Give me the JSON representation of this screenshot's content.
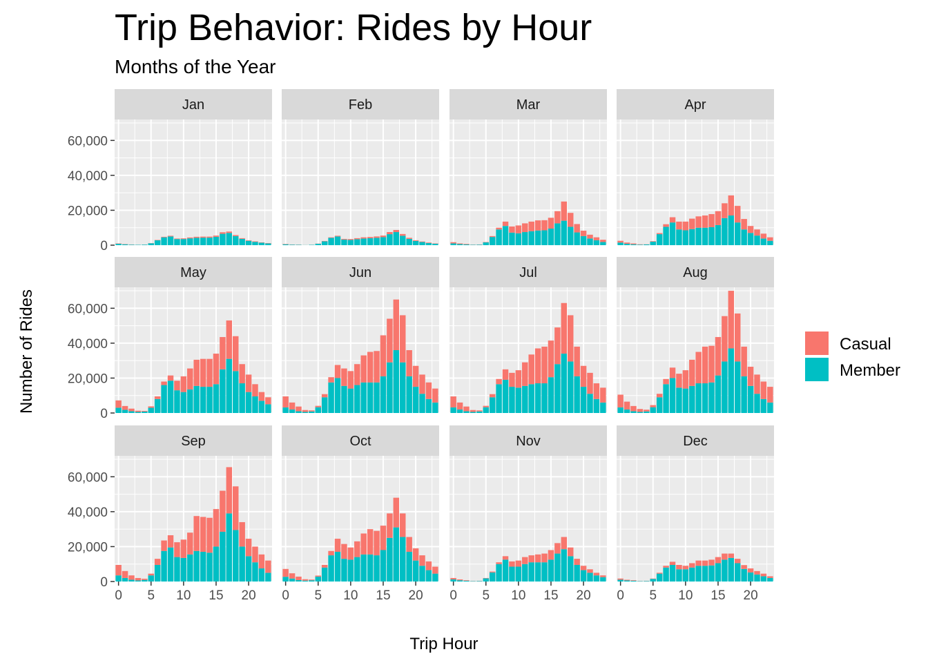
{
  "chart_data": {
    "type": "bar",
    "stacked": true,
    "title": "Trip Behavior: Rides by Hour",
    "subtitle": "Months of the Year",
    "xlabel": "Trip Hour",
    "ylabel": "Number of Rides",
    "xlim": [
      -0.6,
      23.6
    ],
    "ylim": [
      0,
      72000
    ],
    "x_ticks": [
      0,
      5,
      10,
      15,
      20
    ],
    "y_ticks": [
      0,
      20000,
      40000,
      60000
    ],
    "y_tick_labels": [
      "0",
      "20,000",
      "40,000",
      "60,000"
    ],
    "grid": true,
    "legend_position": "right",
    "legend": [
      {
        "name": "Casual",
        "color": "#F8766D"
      },
      {
        "name": "Member",
        "color": "#00BFC4"
      }
    ],
    "hours": [
      0,
      1,
      2,
      3,
      4,
      5,
      6,
      7,
      8,
      9,
      10,
      11,
      12,
      13,
      14,
      15,
      16,
      17,
      18,
      19,
      20,
      21,
      22,
      23
    ],
    "panels": [
      {
        "label": "Jan",
        "member": [
          800,
          500,
          300,
          200,
          300,
          1100,
          2800,
          4500,
          5000,
          3500,
          3500,
          3900,
          4200,
          4300,
          4300,
          4800,
          6500,
          7000,
          5200,
          3600,
          2500,
          1900,
          1400,
          1000
        ],
        "casual": [
          200,
          150,
          100,
          50,
          50,
          100,
          200,
          300,
          400,
          300,
          400,
          500,
          600,
          600,
          600,
          700,
          900,
          800,
          600,
          400,
          300,
          300,
          200,
          200
        ]
      },
      {
        "label": "Feb",
        "member": [
          500,
          300,
          200,
          100,
          200,
          800,
          2200,
          4200,
          5000,
          3200,
          3000,
          3400,
          3800,
          4000,
          4200,
          4600,
          6300,
          7500,
          5400,
          3600,
          2400,
          1800,
          1200,
          800
        ],
        "casual": [
          200,
          100,
          100,
          50,
          50,
          100,
          200,
          300,
          400,
          400,
          500,
          600,
          700,
          700,
          800,
          900,
          1200,
          1200,
          1000,
          600,
          400,
          300,
          300,
          200
        ]
      },
      {
        "label": "Mar",
        "member": [
          1000,
          600,
          400,
          200,
          300,
          1600,
          4700,
          9000,
          11000,
          7200,
          6800,
          7500,
          8000,
          8400,
          8500,
          9500,
          12500,
          14000,
          10500,
          7300,
          5200,
          3800,
          2800,
          1800
        ],
        "casual": [
          700,
          400,
          300,
          100,
          100,
          200,
          500,
          1000,
          2500,
          3500,
          4500,
          5000,
          5500,
          5800,
          5800,
          6200,
          7000,
          11000,
          8000,
          4800,
          3100,
          2200,
          1700,
          1300
        ]
      },
      {
        "label": "Apr",
        "member": [
          1500,
          800,
          500,
          300,
          400,
          2000,
          6300,
          10500,
          13000,
          9000,
          8500,
          9200,
          10000,
          10000,
          10300,
          11500,
          15500,
          17000,
          13000,
          9000,
          7000,
          5500,
          3800,
          2500
        ],
        "casual": [
          1000,
          700,
          500,
          200,
          100,
          300,
          600,
          1500,
          3000,
          4500,
          5000,
          6000,
          6500,
          7000,
          7500,
          8000,
          8500,
          11500,
          9500,
          6000,
          4000,
          3500,
          2800,
          2000
        ]
      },
      {
        "label": "May",
        "member": [
          3000,
          1800,
          1000,
          600,
          800,
          3000,
          8000,
          16000,
          18500,
          13000,
          12000,
          13500,
          15500,
          15000,
          15000,
          16500,
          25000,
          31000,
          24000,
          17000,
          12000,
          9500,
          7000,
          5000
        ],
        "casual": [
          4200,
          2200,
          1500,
          700,
          400,
          800,
          1500,
          2000,
          3000,
          5500,
          9000,
          12000,
          15000,
          16000,
          16000,
          17500,
          18500,
          22000,
          20000,
          11000,
          10000,
          7000,
          5000,
          4000
        ]
      },
      {
        "label": "Jun",
        "member": [
          3200,
          2000,
          1000,
          600,
          900,
          3300,
          9000,
          17500,
          20000,
          15500,
          14000,
          16000,
          17500,
          17500,
          17500,
          21000,
          29000,
          36000,
          29000,
          21000,
          15000,
          11000,
          8000,
          6000
        ],
        "casual": [
          6300,
          4000,
          2700,
          1100,
          600,
          800,
          1800,
          3000,
          7500,
          10000,
          10000,
          12000,
          15500,
          17500,
          18000,
          23500,
          25000,
          29000,
          27000,
          15000,
          12000,
          11000,
          9500,
          8000
        ]
      },
      {
        "label": "Jul",
        "member": [
          3200,
          2000,
          1000,
          600,
          900,
          3300,
          9000,
          16500,
          19000,
          15000,
          14500,
          15500,
          16500,
          17000,
          17000,
          20500,
          28000,
          34000,
          29500,
          21000,
          15000,
          11000,
          8000,
          6000
        ],
        "casual": [
          6300,
          4000,
          2700,
          1100,
          600,
          800,
          1800,
          3000,
          6000,
          8000,
          10000,
          13500,
          17000,
          20000,
          21000,
          21000,
          21000,
          29000,
          26500,
          17000,
          12000,
          12000,
          9000,
          8500
        ]
      },
      {
        "label": "Aug",
        "member": [
          3200,
          2000,
          1000,
          600,
          900,
          3300,
          9000,
          16500,
          20000,
          14500,
          14000,
          15500,
          17000,
          17000,
          17500,
          21500,
          29500,
          37000,
          29500,
          21000,
          15500,
          11000,
          8000,
          6000
        ],
        "casual": [
          7300,
          4500,
          3000,
          1700,
          1000,
          1200,
          2000,
          3000,
          6000,
          8000,
          10500,
          15000,
          18000,
          21000,
          21000,
          22000,
          26000,
          33000,
          27500,
          17000,
          11000,
          11000,
          10000,
          9000
        ]
      },
      {
        "label": "Sep",
        "member": [
          3500,
          2000,
          1000,
          600,
          900,
          3500,
          9500,
          17500,
          19500,
          14000,
          13500,
          15500,
          17500,
          17000,
          16500,
          20000,
          28500,
          39000,
          29500,
          20000,
          14500,
          11000,
          7500,
          5000
        ],
        "casual": [
          6000,
          4000,
          2500,
          1400,
          700,
          1000,
          3500,
          6000,
          7000,
          8500,
          10500,
          12500,
          20000,
          20000,
          20000,
          21500,
          23500,
          26500,
          25000,
          14000,
          10000,
          9000,
          8000,
          7000
        ]
      },
      {
        "label": "Oct",
        "member": [
          2700,
          1700,
          800,
          500,
          700,
          2800,
          8000,
          15000,
          17000,
          13000,
          12500,
          14000,
          15500,
          15500,
          15000,
          18000,
          25000,
          31000,
          25500,
          17000,
          12000,
          9000,
          6500,
          4500
        ],
        "casual": [
          4500,
          3000,
          2000,
          800,
          400,
          600,
          1500,
          2500,
          7500,
          8500,
          7000,
          9000,
          12000,
          14500,
          14000,
          14000,
          14000,
          17000,
          13500,
          8500,
          7000,
          6000,
          5000,
          4000
        ]
      },
      {
        "label": "Nov",
        "member": [
          1200,
          700,
          400,
          200,
          300,
          1800,
          5200,
          10000,
          12500,
          8500,
          8500,
          10000,
          11000,
          11000,
          11000,
          12500,
          16000,
          18500,
          14500,
          9500,
          6500,
          5000,
          3500,
          2500
        ],
        "casual": [
          800,
          500,
          300,
          100,
          100,
          200,
          500,
          1000,
          2000,
          3000,
          3500,
          4000,
          4000,
          4500,
          5000,
          5500,
          6000,
          7000,
          5000,
          3500,
          2500,
          2000,
          1500,
          1000
        ]
      },
      {
        "label": "Dec",
        "member": [
          1000,
          600,
          400,
          200,
          300,
          1500,
          4500,
          8000,
          9500,
          7000,
          7000,
          8000,
          9000,
          9000,
          9200,
          10500,
          12500,
          13500,
          10500,
          7200,
          5200,
          4000,
          3000,
          2000
        ],
        "casual": [
          700,
          400,
          300,
          100,
          100,
          200,
          500,
          1000,
          1800,
          2500,
          2000,
          2500,
          3000,
          3000,
          3300,
          3500,
          3500,
          2500,
          2500,
          2200,
          2300,
          2000,
          1500,
          1000
        ]
      }
    ]
  }
}
